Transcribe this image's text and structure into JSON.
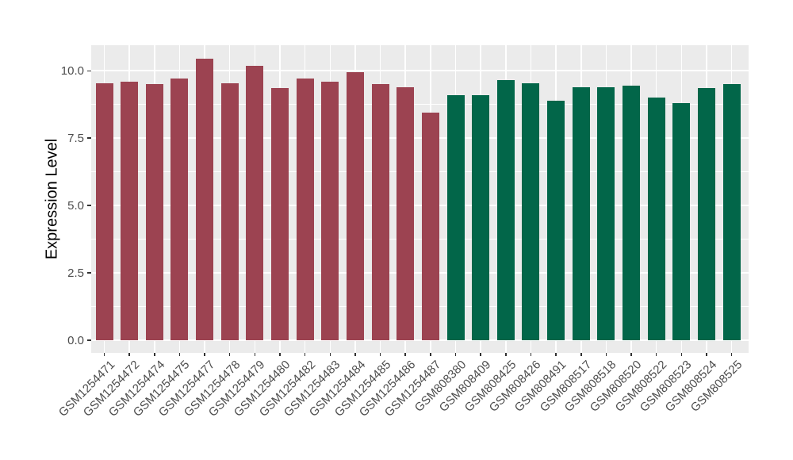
{
  "chart_data": {
    "type": "bar",
    "title": "",
    "xlabel": "",
    "ylabel": "Expression Level",
    "legend": "none",
    "grid": true,
    "panel_background": "#EBEBEB",
    "gridline_color": "#FFFFFF",
    "tick_label_color": "#4D4D4D",
    "axis_title_color": "#000000",
    "tick_mark_color": "#333333",
    "ylim": [
      0,
      10.95
    ],
    "yticks": [
      0,
      2.5,
      5,
      7.5,
      10
    ],
    "ytick_labels": [
      "0.0",
      "2.5",
      "5.0",
      "7.5",
      "10.0"
    ],
    "yticks_minor": [
      1.25,
      3.75,
      6.25,
      8.75
    ],
    "group_colors": {
      "group1": "#9C4351",
      "group2": "#026649"
    },
    "categories": [
      "GSM1254471",
      "GSM1254472",
      "GSM1254474",
      "GSM1254475",
      "GSM1254477",
      "GSM1254478",
      "GSM1254479",
      "GSM1254480",
      "GSM1254482",
      "GSM1254483",
      "GSM1254484",
      "GSM1254485",
      "GSM1254486",
      "GSM1254487",
      "GSM808380",
      "GSM808409",
      "GSM808425",
      "GSM808426",
      "GSM808491",
      "GSM808517",
      "GSM808518",
      "GSM808520",
      "GSM808522",
      "GSM808523",
      "GSM808524",
      "GSM808525"
    ],
    "values": [
      9.55,
      9.6,
      9.5,
      9.7,
      10.45,
      9.55,
      10.2,
      9.35,
      9.7,
      9.6,
      9.95,
      9.5,
      9.4,
      8.45,
      9.1,
      9.1,
      9.65,
      9.55,
      8.9,
      9.4,
      9.4,
      9.45,
      9.0,
      8.8,
      9.35,
      9.5
    ],
    "groups": [
      "group1",
      "group1",
      "group1",
      "group1",
      "group1",
      "group1",
      "group1",
      "group1",
      "group1",
      "group1",
      "group1",
      "group1",
      "group1",
      "group1",
      "group2",
      "group2",
      "group2",
      "group2",
      "group2",
      "group2",
      "group2",
      "group2",
      "group2",
      "group2",
      "group2",
      "group2"
    ]
  }
}
